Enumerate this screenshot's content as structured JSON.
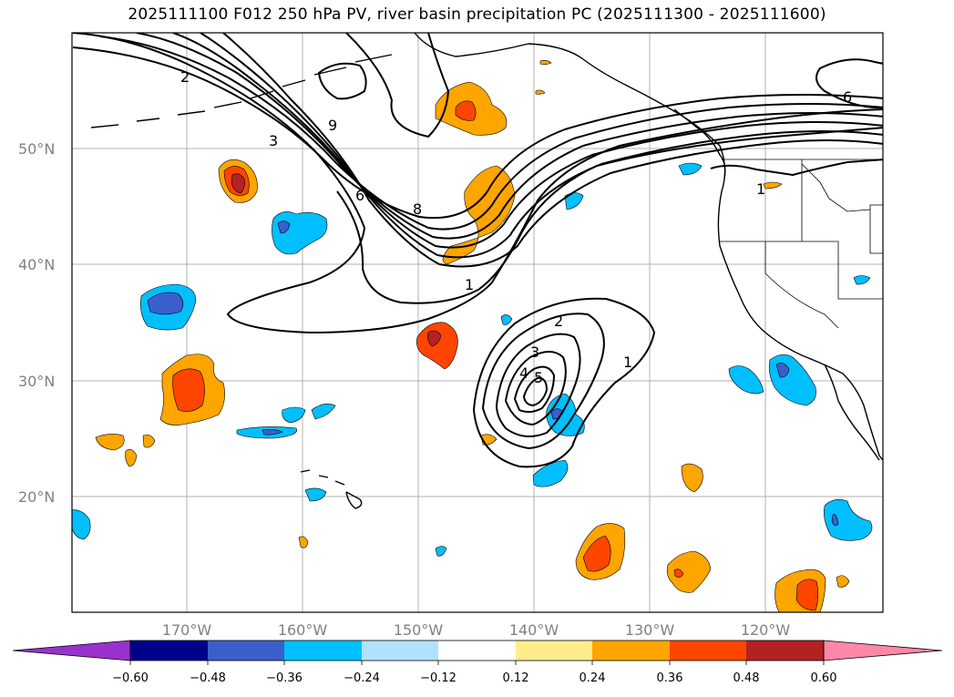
{
  "title": "2025111100 F012 250 hPa PV, river basin precipitation PC (2025111300 - 2025111600)",
  "map": {
    "lat_labels": [
      "50°N",
      "40°N",
      "30°N",
      "20°N"
    ],
    "lon_labels": [
      "170°W",
      "160°W",
      "150°W",
      "140°W",
      "130°W",
      "120°W"
    ],
    "contour_labels": [
      "2",
      "3",
      "9",
      "6",
      "8",
      "1",
      "6",
      "1",
      "2",
      "3",
      "4",
      "5",
      "1"
    ],
    "colors": {
      "pv_contour": "#000000",
      "grid": "#b0b0b0"
    }
  },
  "colorbar": {
    "levels": [
      "−0.60",
      "−0.48",
      "−0.36",
      "−0.24",
      "−0.12",
      "0.12",
      "0.24",
      "0.36",
      "0.48",
      "0.60"
    ],
    "colors": [
      "#9932cc",
      "#00008b",
      "#3a5fcd",
      "#00bfff",
      "#b0e2ff",
      "#ffffff",
      "#ffec8b",
      "#ffa500",
      "#ff4500",
      "#b22222",
      "#ff88a8"
    ]
  }
}
